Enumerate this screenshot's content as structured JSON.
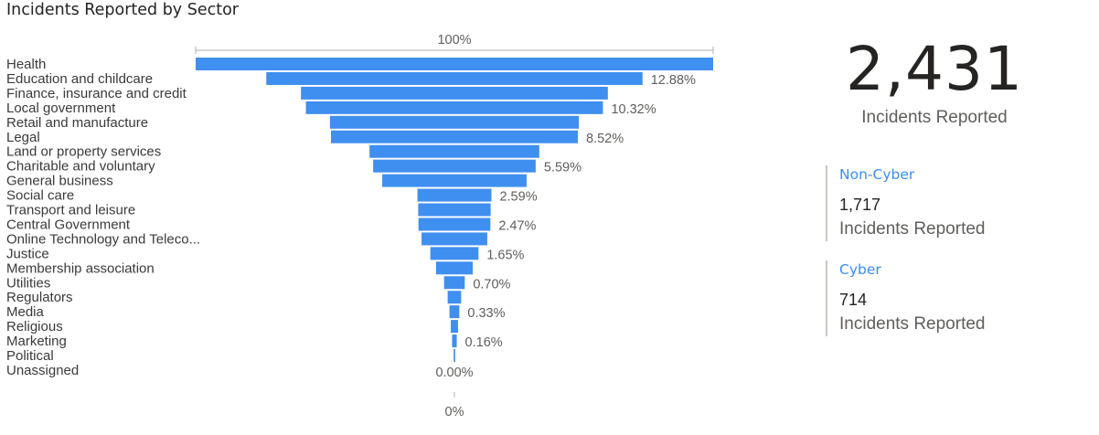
{
  "chart_data": {
    "type": "funnel",
    "title": "Incidents Reported by Sector",
    "top_label": "100%",
    "bottom_label": "0%",
    "bar_color": "#3f8ff0",
    "categories": [
      "Health",
      "Education and childcare",
      "Finance, insurance and credit",
      "Local government",
      "Retail and manufacture",
      "Legal",
      "Land or property services",
      "Charitable and voluntary",
      "General business",
      "Social care",
      "Transport and leisure",
      "Central Government",
      "Online Technology and Teleco...",
      "Justice",
      "Membership association",
      "Utilities",
      "Regulators",
      "Media",
      "Religious",
      "Marketing",
      "Political",
      "Unassigned"
    ],
    "values_pct_of_top": [
      100,
      72.7,
      59.3,
      57.4,
      48.1,
      47.7,
      32.8,
      31.4,
      27.9,
      14.3,
      14.0,
      13.9,
      12.7,
      9.3,
      7.1,
      4.0,
      2.6,
      1.9,
      1.4,
      0.9,
      0.3,
      0
    ],
    "data_labels": {
      "1": "12.88%",
      "3": "10.32%",
      "5": "8.52%",
      "7": "5.59%",
      "9": "2.59%",
      "11": "2.47%",
      "13": "1.65%",
      "15": "0.70%",
      "17": "0.33%",
      "19": "0.16%",
      "21": "0.00%"
    }
  },
  "total": {
    "value": "2,431",
    "caption": "Incidents Reported"
  },
  "kpis": [
    {
      "name": "Non-Cyber",
      "value": "1,717",
      "caption": "Incidents Reported"
    },
    {
      "name": "Cyber",
      "value": "714",
      "caption": "Incidents Reported"
    }
  ]
}
